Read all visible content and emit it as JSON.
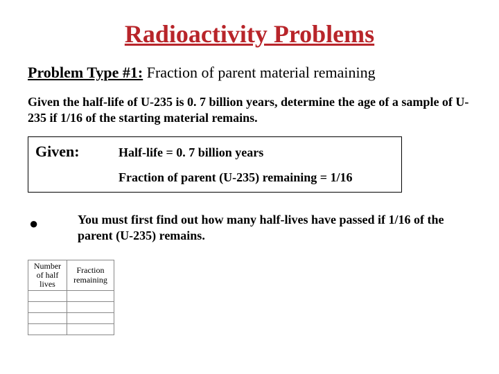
{
  "title": {
    "text": "Radioactivity Problems",
    "color": "#b8252a"
  },
  "subtitle": {
    "label": "Problem Type #1:",
    "rest": "  Fraction of parent material remaining"
  },
  "problem": "Given the half-life of U-235 is 0. 7 billion years, determine the age of a sample of U-235 if 1/16 of the starting material remains.",
  "given": {
    "label": "Given:",
    "half_life": "Half-life = 0. 7 billion years",
    "fraction": "Fraction of parent (U-235) remaining = 1/16"
  },
  "bullet": "●",
  "hint": "You must first find out how many half-lives have passed if 1/16 of the parent (U-235) remains.",
  "table": {
    "col0": "Number of half lives",
    "col1": "Fraction remaining",
    "blank_rows": 4
  }
}
